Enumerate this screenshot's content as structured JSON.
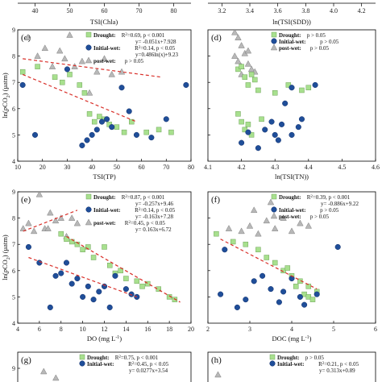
{
  "colors": {
    "drought": "#a8e08e",
    "initial_wet": "#1f4e99",
    "post_wet": "#b8b8b8",
    "trend": "#d9302a"
  },
  "top_strip": {
    "left": {
      "xlabel": "TSI(Chla)",
      "ticks": [
        "40",
        "50",
        "60",
        "70",
        "80"
      ]
    },
    "right": {
      "xlabel": "ln(TSI(SDD))",
      "ticks": [
        "3.2",
        "3.4",
        "3.6",
        "3.8",
        "4.0",
        "4.2"
      ]
    }
  },
  "chart_data": [
    {
      "id": "c",
      "panel_label": "(c)",
      "type": "scatter",
      "xlabel": "TSI(TP)",
      "ylabel": "ln(pCO2) (μatm)",
      "xlim": [
        10,
        80
      ],
      "ylim": [
        4,
        9
      ],
      "xticks": [
        "10",
        "20",
        "30",
        "40",
        "50",
        "60",
        "70",
        "80"
      ],
      "yticks": [
        "4",
        "5",
        "6",
        "7",
        "8",
        "9"
      ],
      "legend": [
        {
          "series": "Drought",
          "stats": "R2=0.69, p < 0.001",
          "eq": "y= -0.051x+7.928"
        },
        {
          "series": "Initial-wet",
          "stats": "R2=0.14, p < 0.05",
          "eq": "y=0.486ln(x)+9.23"
        },
        {
          "series": "post-wet",
          "stats": "p > 0.05",
          "eq": ""
        }
      ],
      "trendlines": [
        [
          [
            12,
            7.3
          ],
          [
            58,
            5.5
          ]
        ],
        [
          [
            12,
            7.9
          ],
          [
            68,
            7.2
          ]
        ]
      ],
      "series": [
        {
          "name": "Drought",
          "marker": "square",
          "points": [
            [
              12,
              7.4
            ],
            [
              18,
              7.6
            ],
            [
              25,
              7.2
            ],
            [
              28,
              7.0
            ],
            [
              31,
              7.3
            ],
            [
              35,
              6.9
            ],
            [
              37,
              6.6
            ],
            [
              39,
              5.8
            ],
            [
              41,
              5.5
            ],
            [
              43,
              5.7
            ],
            [
              45,
              5.6
            ],
            [
              47,
              5.4
            ],
            [
              50,
              5.3
            ],
            [
              53,
              5.1
            ],
            [
              56,
              5.5
            ],
            [
              62,
              5.1
            ],
            [
              67,
              5.2
            ],
            [
              72,
              5.1
            ]
          ]
        },
        {
          "name": "Initial-wet",
          "marker": "circle",
          "points": [
            [
              12,
              6.9
            ],
            [
              17,
              5.0
            ],
            [
              30,
              7.5
            ],
            [
              36,
              4.6
            ],
            [
              38,
              4.8
            ],
            [
              40,
              5.0
            ],
            [
              42,
              5.2
            ],
            [
              44,
              5.5
            ],
            [
              46,
              5.6
            ],
            [
              48,
              5.3
            ],
            [
              52,
              6.8
            ],
            [
              55,
              5.9
            ],
            [
              58,
              5.0
            ],
            [
              64,
              4.9
            ],
            [
              70,
              5.6
            ],
            [
              78,
              6.9
            ]
          ]
        },
        {
          "name": "post-wet",
          "marker": "triangle",
          "points": [
            [
              14,
              8.7
            ],
            [
              18,
              8.0
            ],
            [
              21,
              8.3
            ],
            [
              24,
              7.6
            ],
            [
              27,
              8.2
            ],
            [
              29,
              7.9
            ],
            [
              31,
              8.8
            ],
            [
              33,
              7.6
            ],
            [
              36,
              7.8
            ],
            [
              39,
              6.6
            ],
            [
              42,
              7.4
            ],
            [
              45,
              7.9
            ],
            [
              48,
              7.3
            ],
            [
              52,
              7.4
            ]
          ]
        }
      ]
    },
    {
      "id": "d",
      "panel_label": "(d)",
      "type": "scatter",
      "xlabel": "ln(TSI(TN))",
      "ylabel": "",
      "xlim": [
        4.1,
        4.6
      ],
      "ylim": [
        4,
        9
      ],
      "xticks": [
        "4.1",
        "4.2",
        "4.3",
        "4.4",
        "4.5",
        "4.6"
      ],
      "yticks": [],
      "legend": [
        {
          "series": "Drought",
          "stats": "p > 0.05",
          "eq": ""
        },
        {
          "series": "Initial-wet",
          "stats": "p > 0.05",
          "eq": ""
        },
        {
          "series": "post-wet",
          "stats": "p > 0.05",
          "eq": ""
        }
      ],
      "trendlines": [],
      "series": [
        {
          "name": "Drought",
          "marker": "square",
          "points": [
            [
              4.19,
              7.5
            ],
            [
              4.2,
              7.6
            ],
            [
              4.21,
              7.2
            ],
            [
              4.22,
              6.9
            ],
            [
              4.23,
              7.3
            ],
            [
              4.24,
              7.1
            ],
            [
              4.25,
              6.7
            ],
            [
              4.19,
              5.8
            ],
            [
              4.2,
              5.5
            ],
            [
              4.21,
              5.2
            ],
            [
              4.22,
              5.4
            ],
            [
              4.23,
              5.0
            ],
            [
              4.26,
              5.6
            ],
            [
              4.3,
              6.6
            ],
            [
              4.34,
              6.9
            ],
            [
              4.38,
              6.7
            ],
            [
              4.4,
              6.8
            ]
          ]
        },
        {
          "name": "Initial-wet",
          "marker": "circle",
          "points": [
            [
              4.2,
              4.7
            ],
            [
              4.22,
              5.1
            ],
            [
              4.25,
              4.5
            ],
            [
              4.27,
              5.2
            ],
            [
              4.29,
              5.5
            ],
            [
              4.3,
              5.0
            ],
            [
              4.31,
              4.8
            ],
            [
              4.32,
              5.4
            ],
            [
              4.33,
              6.2
            ],
            [
              4.35,
              5.0
            ],
            [
              4.37,
              5.3
            ],
            [
              4.38,
              5.6
            ],
            [
              4.35,
              6.8
            ],
            [
              4.42,
              6.9
            ]
          ]
        },
        {
          "name": "post-wet",
          "marker": "triangle",
          "points": [
            [
              4.18,
              8.9
            ],
            [
              4.19,
              8.7
            ],
            [
              4.2,
              8.4
            ],
            [
              4.21,
              8.1
            ],
            [
              4.19,
              7.8
            ],
            [
              4.2,
              7.6
            ],
            [
              4.22,
              7.7
            ],
            [
              4.23,
              7.5
            ],
            [
              4.24,
              7.4
            ],
            [
              4.2,
              7.3
            ],
            [
              4.18,
              8.0
            ],
            [
              4.22,
              8.2
            ]
          ]
        }
      ]
    },
    {
      "id": "e",
      "panel_label": "(e)",
      "type": "scatter",
      "xlabel": "DO (mg L-1)",
      "ylabel": "ln(pCO2) (μatm)",
      "xlim": [
        4,
        20
      ],
      "ylim": [
        4,
        9
      ],
      "xticks": [
        "4",
        "6",
        "8",
        "10",
        "12",
        "14",
        "16",
        "18",
        "20"
      ],
      "yticks": [
        "4",
        "5",
        "6",
        "7",
        "8",
        "9"
      ],
      "legend": [
        {
          "series": "Drought",
          "stats": "R2=0.87, p < 0.001",
          "eq": "y= -0.257x+9.46"
        },
        {
          "series": "Initial-wet",
          "stats": "R2=0.14, p < 0.05",
          "eq": "y= -0.163x+7.28"
        },
        {
          "series": "post-wet",
          "stats": "R2=0.45, p < 0.05",
          "eq": "y= 0.163x+6.72"
        }
      ],
      "trendlines": [
        [
          [
            8.5,
            7.3
          ],
          [
            19,
            4.8
          ]
        ],
        [
          [
            5,
            6.5
          ],
          [
            15,
            5.0
          ]
        ],
        [
          [
            4.5,
            7.5
          ],
          [
            9.5,
            8.3
          ]
        ]
      ],
      "series": [
        {
          "name": "Drought",
          "marker": "square",
          "points": [
            [
              8,
              7.4
            ],
            [
              8.5,
              7.2
            ],
            [
              9,
              7.1
            ],
            [
              9.5,
              7.0
            ],
            [
              10,
              6.8
            ],
            [
              10.5,
              6.9
            ],
            [
              11,
              6.5
            ],
            [
              12,
              6.9
            ],
            [
              12.5,
              6.2
            ],
            [
              13,
              5.9
            ],
            [
              13.5,
              6.0
            ],
            [
              14,
              5.7
            ],
            [
              15,
              5.6
            ],
            [
              15.5,
              5.4
            ],
            [
              16,
              5.5
            ],
            [
              17,
              5.3
            ],
            [
              18,
              5.0
            ],
            [
              18.5,
              4.9
            ]
          ]
        },
        {
          "name": "Initial-wet",
          "marker": "circle",
          "points": [
            [
              5,
              6.9
            ],
            [
              6,
              6.3
            ],
            [
              7,
              4.6
            ],
            [
              7.5,
              5.8
            ],
            [
              8,
              5.9
            ],
            [
              8.5,
              6.3
            ],
            [
              9,
              5.5
            ],
            [
              9.5,
              5.7
            ],
            [
              10,
              5.0
            ],
            [
              10.5,
              5.4
            ],
            [
              11,
              4.9
            ],
            [
              11.5,
              5.2
            ],
            [
              12,
              5.4
            ],
            [
              12.5,
              4.6
            ],
            [
              13,
              5.8
            ],
            [
              14,
              5.3
            ],
            [
              14.5,
              5.1
            ],
            [
              15,
              5.0
            ]
          ]
        },
        {
          "name": "post-wet",
          "marker": "triangle",
          "points": [
            [
              4.5,
              7.6
            ],
            [
              5,
              7.8
            ],
            [
              5.5,
              7.5
            ],
            [
              6,
              8.9
            ],
            [
              6.5,
              7.6
            ],
            [
              7,
              8.2
            ],
            [
              7.5,
              7.9
            ],
            [
              8,
              8.0
            ],
            [
              8.5,
              7.3
            ],
            [
              9,
              8.0
            ],
            [
              9.5,
              7.8
            ],
            [
              6.8,
              7.6
            ]
          ]
        }
      ]
    },
    {
      "id": "f",
      "panel_label": "(f)",
      "type": "scatter",
      "xlabel": "DOC (mg L-1)",
      "ylabel": "",
      "xlim": [
        2,
        6
      ],
      "ylim": [
        4,
        9
      ],
      "xticks": [
        "2",
        "3",
        "4",
        "5",
        "6"
      ],
      "yticks": [],
      "legend": [
        {
          "series": "Drought",
          "stats": "R2=0.39, p < 0.001",
          "eq": "y= -0.886x+9.22"
        },
        {
          "series": "Initial-wet",
          "stats": "p > 0.05",
          "eq": ""
        },
        {
          "series": "post-wet",
          "stats": "p > 0.05",
          "eq": ""
        }
      ],
      "trendlines": [
        [
          [
            2.3,
            7.2
          ],
          [
            4.6,
            5.3
          ]
        ]
      ],
      "series": [
        {
          "name": "Drought",
          "marker": "square",
          "points": [
            [
              2.2,
              7.4
            ],
            [
              2.6,
              7.1
            ],
            [
              2.9,
              7.0
            ],
            [
              3.2,
              6.8
            ],
            [
              3.4,
              6.5
            ],
            [
              3.6,
              6.3
            ],
            [
              3.8,
              6.0
            ],
            [
              3.9,
              6.1
            ],
            [
              4.0,
              5.8
            ],
            [
              4.1,
              5.4
            ],
            [
              4.2,
              5.6
            ],
            [
              4.3,
              5.1
            ],
            [
              4.4,
              5.0
            ],
            [
              4.5,
              4.9
            ],
            [
              4.6,
              5.2
            ],
            [
              4.4,
              5.4
            ]
          ]
        },
        {
          "name": "Initial-wet",
          "marker": "circle",
          "points": [
            [
              2.3,
              5.1
            ],
            [
              2.4,
              6.8
            ],
            [
              2.7,
              4.6
            ],
            [
              2.9,
              4.9
            ],
            [
              3.1,
              5.6
            ],
            [
              3.3,
              5.8
            ],
            [
              3.5,
              5.3
            ],
            [
              3.7,
              4.8
            ],
            [
              3.8,
              5.2
            ],
            [
              4.0,
              5.7
            ],
            [
              4.2,
              5.0
            ],
            [
              4.3,
              4.7
            ],
            [
              4.6,
              5.1
            ],
            [
              5.1,
              6.9
            ]
          ]
        },
        {
          "name": "post-wet",
          "marker": "triangle",
          "points": [
            [
              2.5,
              7.6
            ],
            [
              2.8,
              7.5
            ],
            [
              3.0,
              7.7
            ],
            [
              3.2,
              7.4
            ],
            [
              3.4,
              7.9
            ],
            [
              3.6,
              7.6
            ],
            [
              3.8,
              8.0
            ],
            [
              4.0,
              7.5
            ],
            [
              4.2,
              7.8
            ],
            [
              4.4,
              7.7
            ],
            [
              3.5,
              8.6
            ],
            [
              3.1,
              8.3
            ]
          ]
        }
      ]
    },
    {
      "id": "g",
      "panel_label": "(g)",
      "type": "scatter",
      "partial": true,
      "xlabel": "",
      "ylabel": "",
      "xlim": [
        0,
        10
      ],
      "ylim": [
        8,
        9.5
      ],
      "xticks": [],
      "yticks": [
        "9"
      ],
      "legend": [
        {
          "series": "Drought",
          "stats": "R2=0.75, p < 0.001",
          "eq": ""
        },
        {
          "series": "Initial-wet",
          "stats": "R2=0.45, p < 0.05",
          "eq": "y= 0.0277x+3.54"
        }
      ],
      "trendlines": [],
      "series": [
        {
          "name": "post-wet",
          "marker": "triangle",
          "points": [
            [
              1.5,
              8.9
            ],
            [
              2.2,
              8.7
            ]
          ]
        }
      ]
    },
    {
      "id": "h",
      "panel_label": "(h)",
      "type": "scatter",
      "partial": true,
      "xlabel": "",
      "ylabel": "",
      "xlim": [
        0,
        10
      ],
      "ylim": [
        8,
        9.5
      ],
      "xticks": [],
      "yticks": [],
      "legend": [
        {
          "series": "Drought",
          "stats": "p > 0.05",
          "eq": ""
        },
        {
          "series": "Initial-wet",
          "stats": "R2=0.21, p < 0.05",
          "eq": "y= 0.313x+0.89"
        }
      ],
      "trendlines": [],
      "series": [
        {
          "name": "post-wet",
          "marker": "triangle",
          "points": [
            [
              0.6,
              8.8
            ]
          ]
        }
      ]
    }
  ]
}
